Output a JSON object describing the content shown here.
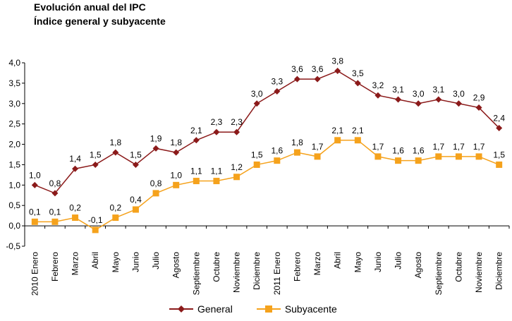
{
  "chart_data": {
    "type": "line",
    "title": "Evolución anual del IPC",
    "subtitle": "Índice general y subyacente",
    "categories": [
      "2010 Enero",
      "Febrero",
      "Marzo",
      "Abril",
      "Mayo",
      "Junio",
      "Julio",
      "Agosto",
      "Septiembre",
      "Octubre",
      "Noviembre",
      "Diciembre",
      "2011 Enero",
      "Febrero",
      "Marzo",
      "Abril",
      "Mayo",
      "Junio",
      "Julio",
      "Agosto",
      "Septiembre",
      "Octubre",
      "Noviembre",
      "Diciembre"
    ],
    "series": [
      {
        "name": "General",
        "color": "#8B1A1A",
        "marker": "diamond",
        "values": [
          1.0,
          0.8,
          1.4,
          1.5,
          1.8,
          1.5,
          1.9,
          1.8,
          2.1,
          2.3,
          2.3,
          3.0,
          3.3,
          3.6,
          3.6,
          3.8,
          3.5,
          3.2,
          3.1,
          3.0,
          3.1,
          3.0,
          2.9,
          2.4
        ],
        "labels": [
          "1,0",
          "0,8",
          "1,4",
          "1,5",
          "1,8",
          "1,5",
          "1,9",
          "1,8",
          "2,1",
          "2,3",
          "2,3",
          "3,0",
          "3,3",
          "3,6",
          "3,6",
          "3,8",
          "3,5",
          "3,2",
          "3,1",
          "3,0",
          "3,1",
          "3,0",
          "2,9",
          "2,4"
        ]
      },
      {
        "name": "Subyacente",
        "color": "#F5A21C",
        "marker": "square",
        "values": [
          0.1,
          0.1,
          0.2,
          -0.1,
          0.2,
          0.4,
          0.8,
          1.0,
          1.1,
          1.1,
          1.2,
          1.5,
          1.6,
          1.8,
          1.7,
          2.1,
          2.1,
          1.7,
          1.6,
          1.6,
          1.7,
          1.7,
          1.7,
          1.5
        ],
        "labels": [
          "0,1",
          "0,1",
          "0,2",
          "-0,1",
          "0,2",
          "0,4",
          "0,8",
          "1,0",
          "1,1",
          "1,1",
          "1,2",
          "1,5",
          "1,6",
          "1,8",
          "1,7",
          "2,1",
          "2,1",
          "1,7",
          "1,6",
          "1,6",
          "1,7",
          "1,7",
          "1,7",
          "1,5"
        ]
      }
    ],
    "ylim": [
      -0.5,
      4.0
    ],
    "yticks": [
      "-0,5",
      "0,0",
      "0,5",
      "1,0",
      "1,5",
      "2,0",
      "2,5",
      "3,0",
      "3,5",
      "4,0"
    ],
    "legend_position": "bottom-center",
    "grid": false
  }
}
